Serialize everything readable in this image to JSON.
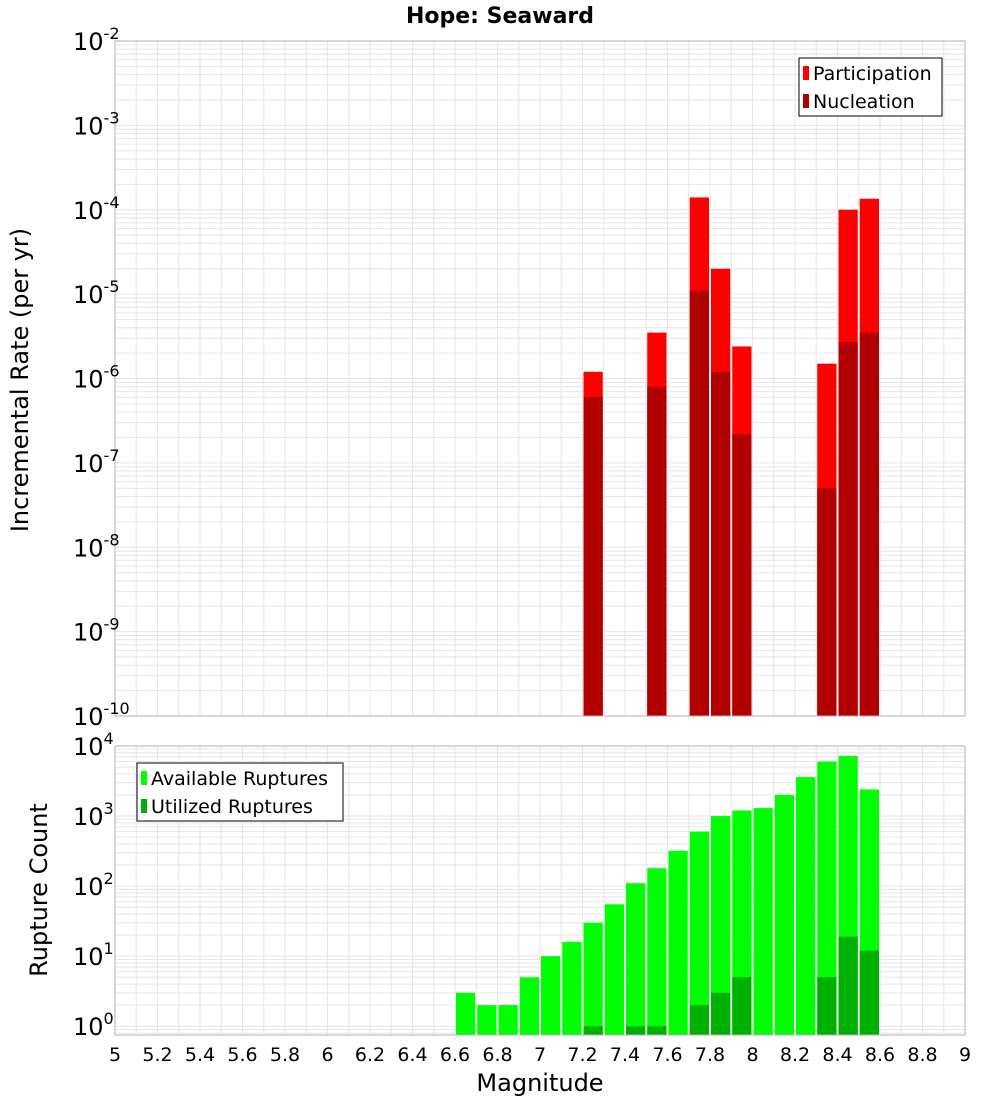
{
  "title": "Hope: Seaward",
  "colors": {
    "participation": "#ff0000",
    "nucleation": "#b00000",
    "available": "#00ff00",
    "utilized": "#00b000",
    "grid": "#e6e6e6",
    "frame": "#b0b0b0"
  },
  "chart_data": [
    {
      "type": "bar",
      "title": "Hope: Seaward",
      "ylabel": "Incremental Rate (per yr)",
      "xlabel": "",
      "yscale": "log",
      "xlim": [
        5,
        9
      ],
      "ylim": [
        1e-10,
        0.01
      ],
      "y_ticks": [
        {
          "base": "10",
          "exp": "-10",
          "value": 1e-10
        },
        {
          "base": "10",
          "exp": "-9",
          "value": 1e-09
        },
        {
          "base": "10",
          "exp": "-8",
          "value": 1e-08
        },
        {
          "base": "10",
          "exp": "-7",
          "value": 1e-07
        },
        {
          "base": "10",
          "exp": "-6",
          "value": 1e-06
        },
        {
          "base": "10",
          "exp": "-5",
          "value": 1e-05
        },
        {
          "base": "10",
          "exp": "-4",
          "value": 0.0001
        },
        {
          "base": "10",
          "exp": "-3",
          "value": 0.001
        },
        {
          "base": "10",
          "exp": "-2",
          "value": 0.01
        }
      ],
      "legend": {
        "position": "top-right",
        "entries": [
          {
            "label": "Participation",
            "color": "#ff0000"
          },
          {
            "label": "Nucleation",
            "color": "#b00000"
          }
        ]
      },
      "series": [
        {
          "name": "Participation",
          "color": "#ff0000",
          "points": [
            {
              "x": 7.25,
              "y": 1.2e-06
            },
            {
              "x": 7.55,
              "y": 3.5e-06
            },
            {
              "x": 7.75,
              "y": 0.00014
            },
            {
              "x": 7.85,
              "y": 2e-05
            },
            {
              "x": 7.95,
              "y": 2.4e-06
            },
            {
              "x": 8.35,
              "y": 1.5e-06
            },
            {
              "x": 8.45,
              "y": 0.0001
            },
            {
              "x": 8.55,
              "y": 0.000135
            }
          ]
        },
        {
          "name": "Nucleation",
          "color": "#b00000",
          "points": [
            {
              "x": 7.25,
              "y": 6e-07
            },
            {
              "x": 7.55,
              "y": 8e-07
            },
            {
              "x": 7.75,
              "y": 1.1e-05
            },
            {
              "x": 7.85,
              "y": 1.2e-06
            },
            {
              "x": 7.95,
              "y": 2.2e-07
            },
            {
              "x": 8.35,
              "y": 5e-08
            },
            {
              "x": 8.45,
              "y": 2.7e-06
            },
            {
              "x": 8.55,
              "y": 3.5e-06
            }
          ]
        }
      ]
    },
    {
      "type": "bar",
      "title": "",
      "ylabel": "Rupture Count",
      "xlabel": "Magnitude",
      "yscale": "log",
      "xlim": [
        5,
        9
      ],
      "ylim": [
        0.75,
        10000
      ],
      "x_ticks": [
        "5",
        "5.2",
        "5.4",
        "5.6",
        "5.8",
        "6",
        "6.2",
        "6.4",
        "6.6",
        "6.8",
        "7",
        "7.2",
        "7.4",
        "7.6",
        "7.8",
        "8",
        "8.2",
        "8.4",
        "8.6",
        "8.8",
        "9"
      ],
      "y_ticks": [
        {
          "base": "10",
          "exp": "0",
          "value": 1
        },
        {
          "base": "10",
          "exp": "1",
          "value": 10
        },
        {
          "base": "10",
          "exp": "2",
          "value": 100
        },
        {
          "base": "10",
          "exp": "3",
          "value": 1000
        },
        {
          "base": "10",
          "exp": "4",
          "value": 10000
        }
      ],
      "legend": {
        "position": "top-left",
        "entries": [
          {
            "label": "Available Ruptures",
            "color": "#00ff00"
          },
          {
            "label": "Utilized Ruptures",
            "color": "#00b000"
          }
        ]
      },
      "series": [
        {
          "name": "Available Ruptures",
          "color": "#00ff00",
          "points": [
            {
              "x": 6.65,
              "y": 3
            },
            {
              "x": 6.75,
              "y": 2
            },
            {
              "x": 6.85,
              "y": 2
            },
            {
              "x": 6.95,
              "y": 5
            },
            {
              "x": 7.05,
              "y": 10
            },
            {
              "x": 7.15,
              "y": 16
            },
            {
              "x": 7.25,
              "y": 30
            },
            {
              "x": 7.35,
              "y": 55
            },
            {
              "x": 7.45,
              "y": 110
            },
            {
              "x": 7.55,
              "y": 180
            },
            {
              "x": 7.65,
              "y": 320
            },
            {
              "x": 7.75,
              "y": 600
            },
            {
              "x": 7.85,
              "y": 1000
            },
            {
              "x": 7.95,
              "y": 1200
            },
            {
              "x": 8.05,
              "y": 1300
            },
            {
              "x": 8.15,
              "y": 2000
            },
            {
              "x": 8.25,
              "y": 3600
            },
            {
              "x": 8.35,
              "y": 6000
            },
            {
              "x": 8.45,
              "y": 7200
            },
            {
              "x": 8.55,
              "y": 2400
            }
          ]
        },
        {
          "name": "Utilized Ruptures",
          "color": "#00b000",
          "points": [
            {
              "x": 7.25,
              "y": 1
            },
            {
              "x": 7.45,
              "y": 1
            },
            {
              "x": 7.55,
              "y": 1
            },
            {
              "x": 7.75,
              "y": 2
            },
            {
              "x": 7.85,
              "y": 3
            },
            {
              "x": 7.95,
              "y": 5
            },
            {
              "x": 8.35,
              "y": 5
            },
            {
              "x": 8.45,
              "y": 19
            },
            {
              "x": 8.55,
              "y": 12
            }
          ]
        }
      ]
    }
  ]
}
